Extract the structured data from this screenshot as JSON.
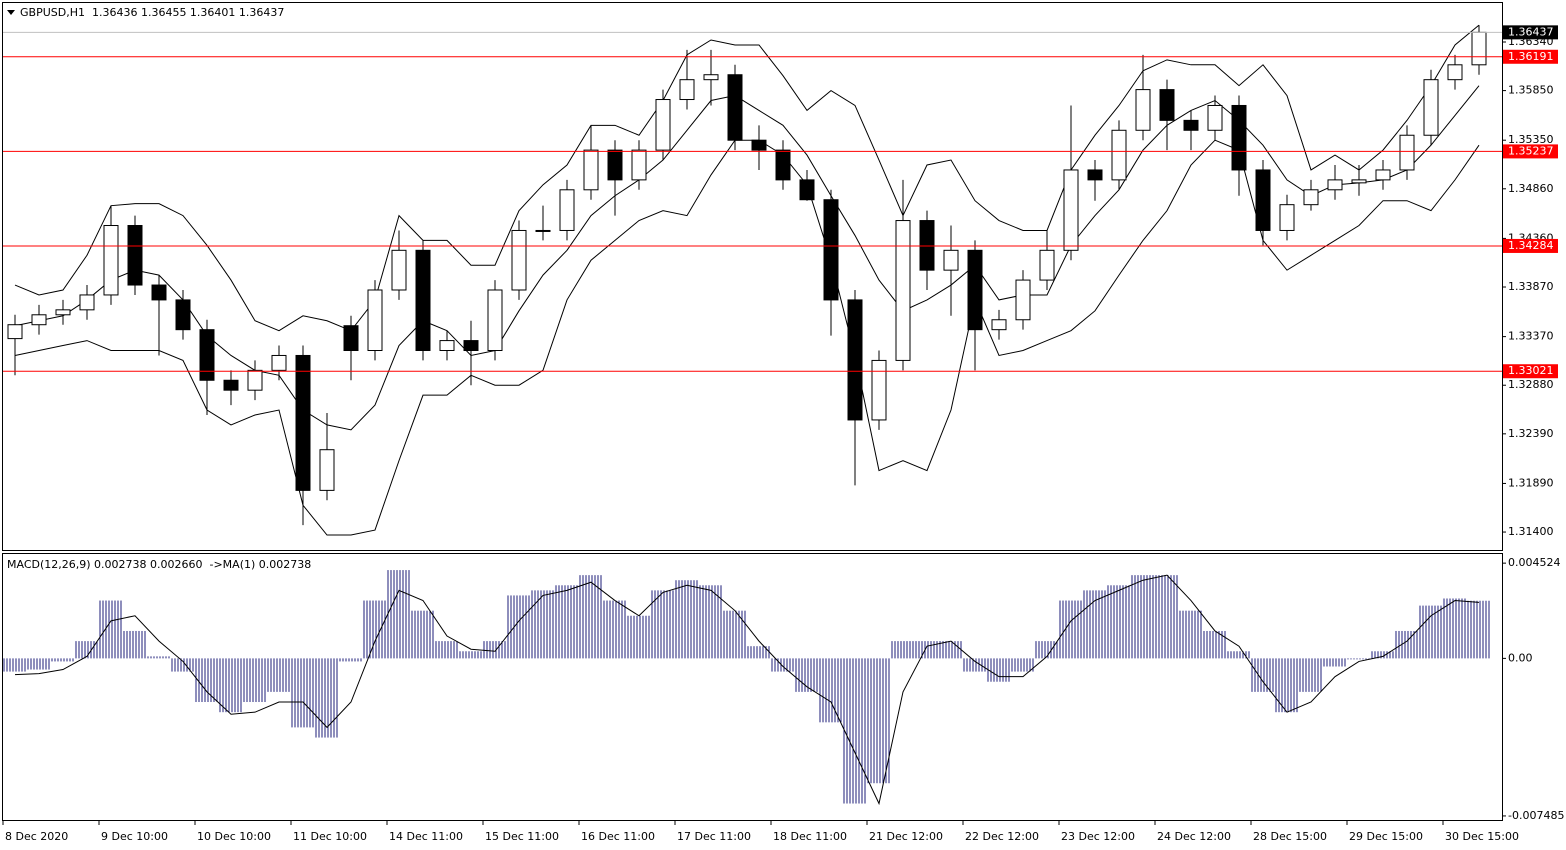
{
  "chart_data": [
    {
      "type": "candlestick",
      "title": "GBPUSD,H1  1.36436 1.36455 1.36401 1.36437",
      "categories": [
        "8 Dec 2020",
        null,
        null,
        null,
        "9 Dec 10:00",
        null,
        null,
        null,
        "10 Dec 10:00",
        null,
        null,
        null,
        "11 Dec 10:00",
        null,
        null,
        null,
        "14 Dec 11:00",
        null,
        null,
        null,
        "15 Dec 11:00",
        null,
        null,
        null,
        "16 Dec 11:00",
        null,
        null,
        null,
        "17 Dec 11:00",
        null,
        null,
        null,
        "18 Dec 11:00",
        null,
        null,
        null,
        "21 Dec 12:00",
        null,
        null,
        null,
        "22 Dec 12:00",
        null,
        null,
        null,
        "23 Dec 12:00",
        null,
        null,
        null,
        "24 Dec 12:00",
        null,
        null,
        null,
        "28 Dec 15:00",
        null,
        null,
        null,
        "29 Dec 15:00",
        null,
        null,
        null,
        "30 Dec 15:00",
        null
      ],
      "open": [
        1.3335,
        1.3349,
        1.3359,
        1.3364,
        1.3379,
        1.3449,
        1.3389,
        1.3374,
        1.3344,
        1.3293,
        1.3283,
        1.3303,
        1.3318,
        1.3182,
        1.3348,
        1.3323,
        1.3384,
        1.3424,
        1.3323,
        1.3333,
        1.3323,
        1.3384,
        1.3444,
        1.3444,
        1.3485,
        1.3525,
        1.3495,
        1.3525,
        1.3576,
        1.3596,
        1.3601,
        1.3535,
        1.3525,
        1.3495,
        1.3475,
        1.3374,
        1.3253,
        1.3313,
        1.3454,
        1.3404,
        1.3424,
        1.3344,
        1.3354,
        1.3394,
        1.3424,
        1.3505,
        1.3495,
        1.3545,
        1.3586,
        1.3555,
        1.3545,
        1.357,
        1.3505,
        1.3444,
        1.347,
        1.3485,
        1.3492,
        1.3495,
        1.3505,
        1.354,
        1.3596,
        1.3611
      ],
      "high": [
        1.3359,
        1.3369,
        1.3374,
        1.3389,
        1.3469,
        1.3459,
        1.3399,
        1.3384,
        1.3354,
        1.3303,
        1.3313,
        1.3328,
        1.3328,
        1.326,
        1.3358,
        1.3394,
        1.3444,
        1.3434,
        1.3343,
        1.3353,
        1.3394,
        1.3454,
        1.3469,
        1.3495,
        1.355,
        1.3535,
        1.3535,
        1.3586,
        1.3626,
        1.3626,
        1.3611,
        1.355,
        1.3535,
        1.3505,
        1.3485,
        1.3384,
        1.3323,
        1.3495,
        1.3464,
        1.3449,
        1.3434,
        1.3364,
        1.3404,
        1.3444,
        1.357,
        1.3515,
        1.3555,
        1.3621,
        1.3596,
        1.3565,
        1.358,
        1.358,
        1.3515,
        1.348,
        1.3495,
        1.351,
        1.351,
        1.3515,
        1.355,
        1.3606,
        1.3621,
        1.3651
      ],
      "low": [
        1.3298,
        1.3339,
        1.3349,
        1.3354,
        1.3369,
        1.3379,
        1.3318,
        1.3334,
        1.3258,
        1.3268,
        1.3273,
        1.3293,
        1.3147,
        1.3172,
        1.3293,
        1.3313,
        1.3374,
        1.3313,
        1.3313,
        1.3288,
        1.3313,
        1.3374,
        1.3434,
        1.3434,
        1.3475,
        1.3459,
        1.3485,
        1.3515,
        1.3566,
        1.357,
        1.3525,
        1.3505,
        1.3485,
        1.3474,
        1.3338,
        1.3187,
        1.3243,
        1.3303,
        1.3384,
        1.3358,
        1.3303,
        1.3334,
        1.3344,
        1.3384,
        1.3414,
        1.3474,
        1.3485,
        1.3535,
        1.3525,
        1.3525,
        1.3535,
        1.3479,
        1.3429,
        1.3434,
        1.3464,
        1.3475,
        1.3479,
        1.3485,
        1.3495,
        1.353,
        1.3586,
        1.3601
      ],
      "close": [
        1.3349,
        1.3359,
        1.3364,
        1.3379,
        1.3449,
        1.3389,
        1.3374,
        1.3344,
        1.3293,
        1.3283,
        1.3303,
        1.3318,
        1.3182,
        1.3223,
        1.3323,
        1.3384,
        1.3424,
        1.3323,
        1.3333,
        1.3323,
        1.3384,
        1.3444,
        1.3444,
        1.3485,
        1.3525,
        1.3495,
        1.3525,
        1.3576,
        1.3596,
        1.3601,
        1.3535,
        1.3525,
        1.3495,
        1.3475,
        1.3374,
        1.3253,
        1.3313,
        1.3454,
        1.3404,
        1.3424,
        1.3344,
        1.3354,
        1.3394,
        1.3424,
        1.3505,
        1.3495,
        1.3545,
        1.3586,
        1.3555,
        1.3545,
        1.357,
        1.3505,
        1.3444,
        1.347,
        1.3485,
        1.3495,
        1.3495,
        1.3505,
        1.354,
        1.3596,
        1.3611,
        1.36437
      ],
      "up_color": "#ffffff",
      "down_color": "#000000",
      "color": "#000000",
      "bands": {
        "upper": [
          1.3389,
          1.3379,
          1.3384,
          1.3419,
          1.3469,
          1.3471,
          1.3471,
          1.3459,
          1.3429,
          1.3394,
          1.3353,
          1.3343,
          1.3358,
          1.3353,
          1.3343,
          1.3374,
          1.3459,
          1.3434,
          1.3434,
          1.3409,
          1.3409,
          1.3464,
          1.349,
          1.351,
          1.355,
          1.355,
          1.354,
          1.3575,
          1.3621,
          1.3636,
          1.3631,
          1.3631,
          1.36,
          1.3565,
          1.3585,
          1.357,
          1.3515,
          1.3459,
          1.351,
          1.3515,
          1.3474,
          1.3454,
          1.3444,
          1.3444,
          1.3505,
          1.354,
          1.357,
          1.3605,
          1.3616,
          1.3611,
          1.3611,
          1.359,
          1.3611,
          1.358,
          1.3505,
          1.352,
          1.3505,
          1.3525,
          1.3555,
          1.359,
          1.3631,
          1.3651
        ],
        "middle": [
          1.3348,
          1.3353,
          1.3358,
          1.3374,
          1.3394,
          1.3404,
          1.3399,
          1.3374,
          1.3338,
          1.3318,
          1.3303,
          1.3298,
          1.3263,
          1.3248,
          1.3243,
          1.3268,
          1.3328,
          1.3353,
          1.3343,
          1.3318,
          1.3323,
          1.3363,
          1.3399,
          1.3424,
          1.3459,
          1.3479,
          1.3495,
          1.3515,
          1.3545,
          1.3575,
          1.358,
          1.3565,
          1.355,
          1.352,
          1.3479,
          1.3439,
          1.3394,
          1.3363,
          1.3374,
          1.3389,
          1.3409,
          1.3374,
          1.3379,
          1.3379,
          1.3429,
          1.3459,
          1.3485,
          1.3525,
          1.355,
          1.3565,
          1.3575,
          1.3555,
          1.353,
          1.3495,
          1.3479,
          1.349,
          1.3492,
          1.3495,
          1.3505,
          1.353,
          1.356,
          1.359
        ],
        "lower": [
          1.3318,
          1.3323,
          1.3328,
          1.3333,
          1.3323,
          1.3323,
          1.3323,
          1.3313,
          1.3263,
          1.3248,
          1.3258,
          1.3263,
          1.3167,
          1.3137,
          1.3137,
          1.3142,
          1.3212,
          1.3278,
          1.3278,
          1.3298,
          1.3288,
          1.3288,
          1.3303,
          1.3374,
          1.3414,
          1.3434,
          1.3454,
          1.3464,
          1.3459,
          1.35,
          1.3535,
          1.3535,
          1.352,
          1.349,
          1.3414,
          1.3318,
          1.3202,
          1.3212,
          1.3202,
          1.3263,
          1.3374,
          1.3318,
          1.3323,
          1.3333,
          1.3343,
          1.3363,
          1.3399,
          1.3434,
          1.3464,
          1.351,
          1.3535,
          1.3525,
          1.3434,
          1.3404,
          1.3419,
          1.3434,
          1.3449,
          1.3474,
          1.3474,
          1.3464,
          1.3495,
          1.353
        ]
      },
      "levels": [
        1.36191,
        1.35237,
        1.34284,
        1.33021
      ],
      "level_color": "#ff0000",
      "last_price": 1.36437,
      "last_price_color": "#c0c0c0",
      "ylim": [
        1.31219,
        1.36733
      ],
      "yticks": [
        {
          "value": 1.3634,
          "label": "1.36340"
        },
        {
          "value": 1.3585,
          "label": "1.35850"
        },
        {
          "value": 1.3535,
          "label": "1.35350"
        },
        {
          "value": 1.3486,
          "label": "1.34860"
        },
        {
          "value": 1.3436,
          "label": "1.34360"
        },
        {
          "value": 1.3387,
          "label": "1.33870"
        },
        {
          "value": 1.3337,
          "label": "1.33370"
        },
        {
          "value": 1.3288,
          "label": "1.32880"
        },
        {
          "value": 1.3239,
          "label": "1.32390"
        },
        {
          "value": 1.3189,
          "label": "1.31890"
        },
        {
          "value": 1.314,
          "label": "1.31400"
        }
      ]
    },
    {
      "type": "macd",
      "title": "MACD(12,26,9) 0.002738 0.002660  ->MA(1) 0.002738",
      "histogram": [
        -0.000627,
        -0.00053,
        -0.000145,
        0.00082,
        0.002748,
        0.001302,
        9.6e-05,
        -0.000627,
        -0.002073,
        -0.002556,
        -0.002073,
        -0.001591,
        -0.003279,
        -0.003761,
        -0.000145,
        0.002748,
        0.004195,
        0.002266,
        0.00082,
        0.000338,
        0.00082,
        0.00299,
        0.003231,
        0.003472,
        0.003954,
        0.002748,
        0.002025,
        0.003231,
        0.003713,
        0.003472,
        0.002266,
        0.000579,
        -0.000627,
        -0.001591,
        -0.003038,
        -0.006895,
        -0.005931,
        0.00082,
        0.00082,
        0.00082,
        -0.000627,
        -0.001109,
        -0.000627,
        0.00082,
        0.002748,
        0.003231,
        0.003472,
        0.003954,
        0.003954,
        0.002266,
        0.001302,
        0.000338,
        -0.001591,
        -0.002556,
        -0.001591,
        -0.000386,
        -4.8e-05,
        0.000338,
        0.001302,
        0.002507,
        0.002845,
        0.002738
      ],
      "signal": [
        -0.000772,
        -0.000723,
        -0.00053,
        9.6e-05,
        0.001784,
        0.002025,
        0.00082,
        -0.000145,
        -0.001591,
        -0.002652,
        -0.002556,
        -0.002073,
        -0.002073,
        -0.003279,
        -0.002073,
        0.00082,
        0.003231,
        0.002748,
        0.001061,
        0.000434,
        0.000338,
        0.001784,
        0.00299,
        0.003231,
        0.003617,
        0.002748,
        0.002025,
        0.003134,
        0.003472,
        0.003231,
        0.002266,
        0.00082,
        -0.000386,
        -0.00135,
        -0.002073,
        -0.004484,
        -0.006895,
        -0.001591,
        0.000579,
        0.00082,
        -0.000145,
        -0.000868,
        -0.000868,
        9.6e-05,
        0.001784,
        0.002748,
        0.003231,
        0.003713,
        0.003954,
        0.002748,
        0.001302,
        0.000579,
        -0.001109,
        -0.002556,
        -0.002073,
        -0.000868,
        -0.000145,
        9.6e-05,
        0.00082,
        0.002025,
        0.002748,
        0.00266
      ],
      "color": "#1c1c78",
      "signal_color": "#000000",
      "ylim": [
        -0.007678,
        0.005006
      ],
      "yticks": [
        {
          "value": 0.004524,
          "label": "0.004524"
        },
        {
          "value": 0,
          "label": "0.00"
        },
        {
          "value": -0.007485,
          "label": "-0.007485"
        }
      ]
    }
  ]
}
